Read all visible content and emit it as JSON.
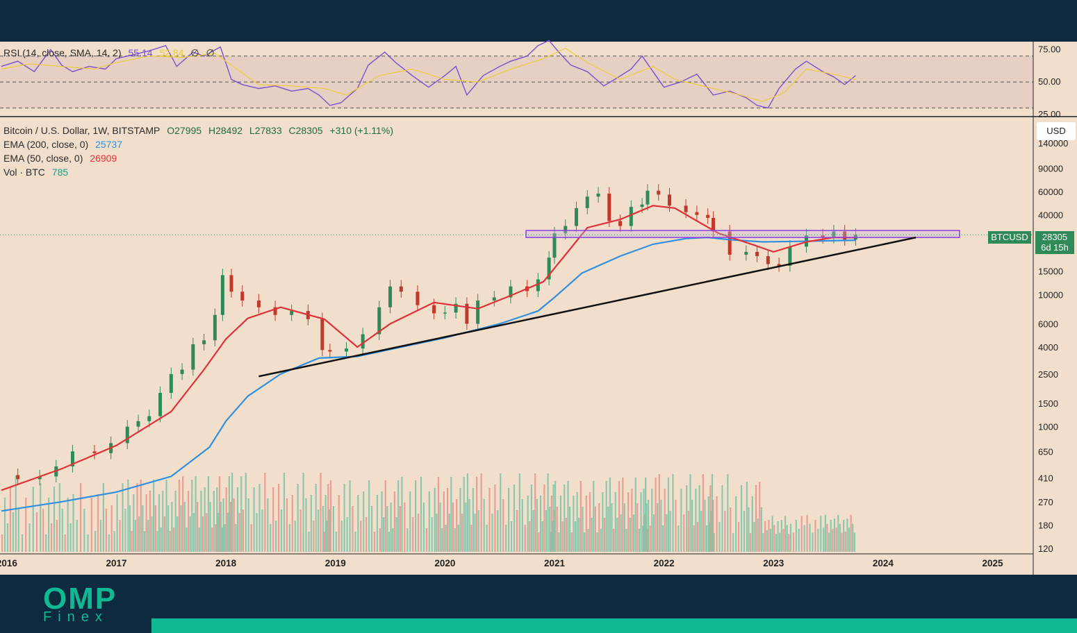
{
  "rsi_legend": {
    "label": "RSI (14, close, SMA, 14, 2)",
    "value": "55.14",
    "sma_value": "52.84",
    "extra1": "∅",
    "extra2": "∅"
  },
  "main_legend": {
    "pair": "Bitcoin / U.S. Dollar, 1W, BITSTAMP",
    "open": "O27995",
    "high": "H28492",
    "low": "L27833",
    "close": "C28305",
    "change": "+310 (+1.11%)",
    "ema200_label": "EMA (200, close, 0)",
    "ema200_value": "25737",
    "ema50_label": "EMA (50, close, 0)",
    "ema50_value": "26909",
    "vol_label": "Vol · BTC",
    "vol_value": "785"
  },
  "currency_button": "USD",
  "price_tag": {
    "symbol": "BTCUSD",
    "price": "28305",
    "countdown": "6d 15h"
  },
  "logo": {
    "main": "OMP",
    "sub": "Finex"
  },
  "colors": {
    "bg": "#f2dfcb",
    "up": "#2e8b57",
    "down": "#c0392b",
    "ema200": "#2f8fe0",
    "ema50": "#e0303a",
    "rsi": "#7b4fcf",
    "rsi_sma": "#e8cf3a",
    "brand": "#11b894"
  },
  "chart_data": [
    {
      "type": "line",
      "title": "RSI (14, close, SMA, 14, 2)",
      "ylim": [
        25,
        80
      ],
      "y_ticks": [
        "75.00",
        "50.00",
        "25.00"
      ],
      "levels": [
        70,
        50,
        30
      ],
      "series": [
        {
          "name": "RSI",
          "x": [
            2015.95,
            2016.1,
            2016.25,
            2016.4,
            2016.5,
            2016.6,
            2016.75,
            2016.9,
            2017.0,
            2017.15,
            2017.3,
            2017.45,
            2017.55,
            2017.7,
            2017.8,
            2017.95,
            2018.05,
            2018.15,
            2018.3,
            2018.45,
            2018.6,
            2018.75,
            2018.85,
            2018.95,
            2019.05,
            2019.2,
            2019.3,
            2019.45,
            2019.55,
            2019.7,
            2019.85,
            2020.0,
            2020.1,
            2020.2,
            2020.35,
            2020.5,
            2020.6,
            2020.75,
            2020.85,
            2020.95,
            2021.05,
            2021.15,
            2021.3,
            2021.45,
            2021.55,
            2021.7,
            2021.8,
            2021.9,
            2022.0,
            2022.15,
            2022.3,
            2022.45,
            2022.6,
            2022.75,
            2022.85,
            2022.95,
            2023.05,
            2023.2,
            2023.3,
            2023.45,
            2023.55,
            2023.65,
            2023.75
          ],
          "values": [
            62,
            66,
            58,
            75,
            63,
            58,
            62,
            60,
            68,
            71,
            74,
            78,
            62,
            73,
            70,
            77,
            52,
            48,
            45,
            47,
            43,
            45,
            40,
            32,
            34,
            45,
            63,
            73,
            65,
            55,
            46,
            55,
            62,
            40,
            55,
            62,
            66,
            70,
            78,
            82,
            72,
            63,
            58,
            47,
            52,
            60,
            70,
            58,
            46,
            50,
            56,
            40,
            43,
            38,
            32,
            30,
            45,
            60,
            66,
            58,
            54,
            48,
            55
          ]
        },
        {
          "name": "SMA",
          "x": [
            2015.95,
            2016.2,
            2016.5,
            2016.8,
            2017.0,
            2017.3,
            2017.6,
            2017.9,
            2018.1,
            2018.3,
            2018.6,
            2018.9,
            2019.1,
            2019.4,
            2019.7,
            2020.0,
            2020.3,
            2020.6,
            2020.9,
            2021.1,
            2021.3,
            2021.6,
            2021.9,
            2022.1,
            2022.4,
            2022.7,
            2022.9,
            2023.1,
            2023.3,
            2023.55,
            2023.75
          ],
          "values": [
            60,
            64,
            62,
            60,
            65,
            70,
            69,
            72,
            60,
            48,
            47,
            45,
            40,
            55,
            60,
            52,
            50,
            60,
            68,
            76,
            65,
            52,
            62,
            52,
            46,
            40,
            35,
            42,
            60,
            56,
            52
          ]
        }
      ]
    },
    {
      "type": "candlestick",
      "title": "Bitcoin / U.S. Dollar, 1W, BITSTAMP",
      "yscale": "log",
      "ylim": [
        120,
        160000
      ],
      "y_ticks": [
        "140000",
        "90000",
        "60000",
        "40000",
        "15000",
        "10000",
        "6000",
        "4000",
        "2500",
        "1500",
        "1000",
        "650",
        "410",
        "270",
        "180",
        "120"
      ],
      "x_ticks": [
        "2016",
        "2017",
        "2018",
        "2019",
        "2020",
        "2021",
        "2022",
        "2023",
        "2024",
        "2025"
      ],
      "series": [
        {
          "name": "BTCUSD",
          "x": [
            2015.95,
            2016.1,
            2016.3,
            2016.45,
            2016.6,
            2016.8,
            2016.95,
            2017.1,
            2017.2,
            2017.3,
            2017.4,
            2017.5,
            2017.6,
            2017.7,
            2017.8,
            2017.9,
            2017.97,
            2018.05,
            2018.15,
            2018.3,
            2018.45,
            2018.6,
            2018.75,
            2018.88,
            2018.95,
            2019.1,
            2019.25,
            2019.4,
            2019.5,
            2019.6,
            2019.75,
            2019.9,
            2020.0,
            2020.1,
            2020.2,
            2020.3,
            2020.45,
            2020.6,
            2020.75,
            2020.85,
            2020.95,
            2021.0,
            2021.1,
            2021.2,
            2021.3,
            2021.4,
            2021.5,
            2021.6,
            2021.7,
            2021.8,
            2021.85,
            2021.95,
            2022.05,
            2022.2,
            2022.3,
            2022.4,
            2022.45,
            2022.6,
            2022.75,
            2022.85,
            2022.95,
            2023.05,
            2023.15,
            2023.3,
            2023.45,
            2023.55,
            2023.65,
            2023.75
          ],
          "values": [
            430,
            400,
            420,
            500,
            650,
            630,
            750,
            1000,
            1100,
            1200,
            1800,
            2500,
            2700,
            4200,
            4500,
            7000,
            14000,
            10500,
            9000,
            8000,
            7000,
            7500,
            6500,
            3800,
            3700,
            3900,
            5000,
            8000,
            11500,
            10500,
            8300,
            7200,
            7300,
            8500,
            6000,
            9000,
            9500,
            11500,
            10600,
            13000,
            19000,
            29000,
            33000,
            45000,
            55000,
            58000,
            36000,
            33000,
            46000,
            48000,
            61000,
            57000,
            47000,
            42000,
            40000,
            38000,
            30000,
            20000,
            21000,
            19500,
            17000,
            16500,
            23000,
            28000,
            27000,
            30000,
            26000,
            28305
          ]
        },
        {
          "name": "EMA (200, close, 0)",
          "x": [
            2015.95,
            2016.5,
            2017.0,
            2017.5,
            2017.85,
            2018.0,
            2018.2,
            2018.5,
            2018.85,
            2019.2,
            2019.6,
            2020.0,
            2020.5,
            2020.85,
            2021.0,
            2021.25,
            2021.6,
            2021.9,
            2022.2,
            2022.4,
            2022.6,
            2022.9,
            2023.2,
            2023.5,
            2023.75
          ],
          "values": [
            230,
            270,
            320,
            420,
            700,
            1100,
            1700,
            2500,
            3300,
            3400,
            4000,
            4700,
            6000,
            7500,
            9500,
            14500,
            19500,
            24000,
            26500,
            27000,
            26000,
            25000,
            25200,
            25500,
            25737
          ]
        },
        {
          "name": "EMA (50, close, 0)",
          "x": [
            2015.95,
            2016.5,
            2017.0,
            2017.5,
            2017.8,
            2018.0,
            2018.2,
            2018.5,
            2018.9,
            2019.2,
            2019.5,
            2019.9,
            2020.3,
            2020.6,
            2020.9,
            2021.1,
            2021.3,
            2021.6,
            2021.9,
            2022.1,
            2022.3,
            2022.5,
            2022.8,
            2023.0,
            2023.3,
            2023.55,
            2023.75
          ],
          "values": [
            330,
            480,
            720,
            1300,
            2700,
            4600,
            6600,
            8000,
            6500,
            4000,
            6000,
            8700,
            7800,
            9800,
            12500,
            20000,
            32000,
            37000,
            47000,
            45000,
            36000,
            29000,
            24000,
            21000,
            25000,
            27000,
            26909
          ]
        }
      ],
      "volume": {
        "name": "Vol · BTC",
        "value": "785",
        "ylim": [
          0,
          800
        ]
      },
      "annotations": {
        "horizontal_zone": [
          27000,
          30500
        ],
        "trendline_from": {
          "x": 2018.3,
          "y": 2400
        },
        "trendline_to": {
          "x": 2024.3,
          "y": 27000
        }
      }
    }
  ]
}
